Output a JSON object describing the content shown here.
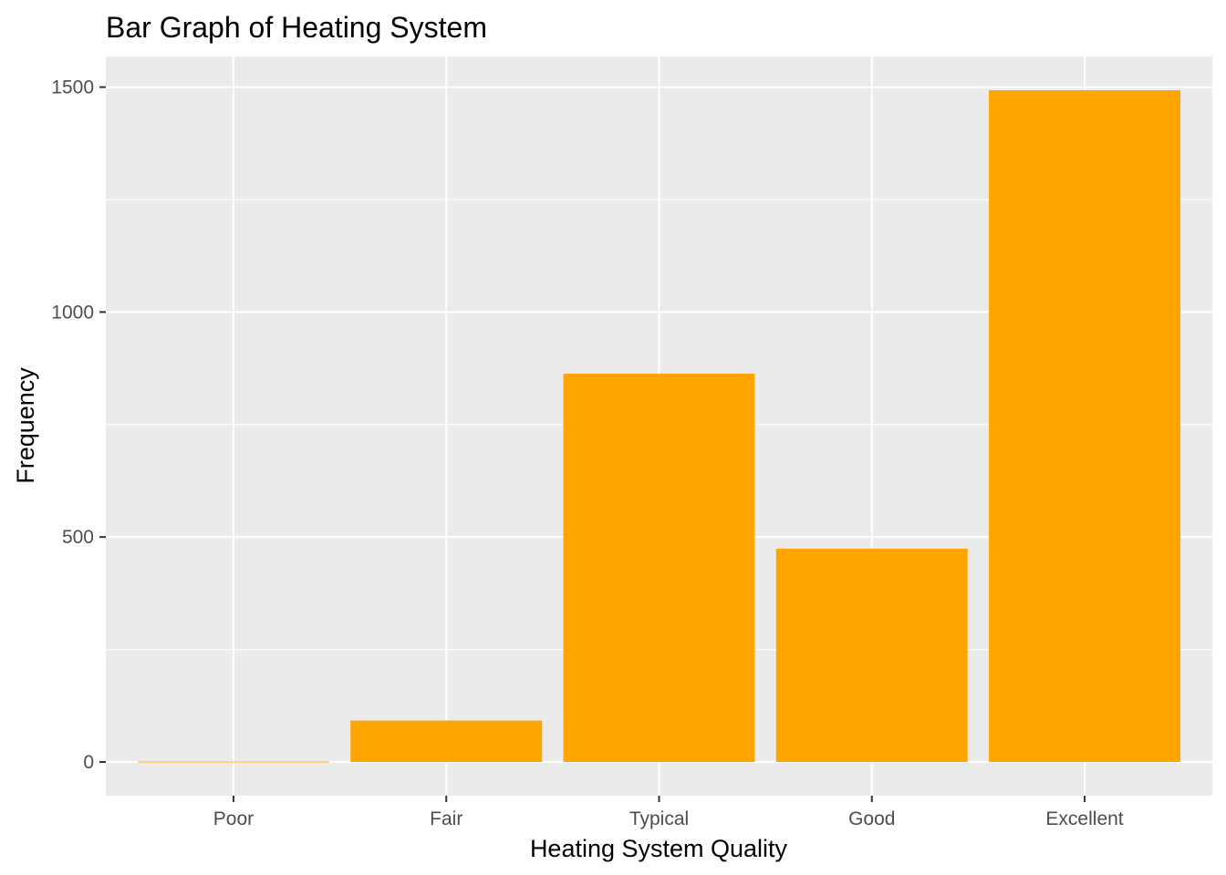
{
  "chart_data": {
    "type": "bar",
    "title": "Bar Graph of Heating System",
    "xlabel": "Heating System Quality",
    "ylabel": "Frequency",
    "categories": [
      "Poor",
      "Fair",
      "Typical",
      "Good",
      "Excellent"
    ],
    "values": [
      1,
      92,
      863,
      474,
      1493
    ],
    "ylim": [
      -75,
      1568
    ],
    "yticks": [
      0,
      500,
      1000,
      1500
    ],
    "yticks_minor": [
      250,
      750,
      1250
    ],
    "grid": true,
    "legend": "none",
    "colors": {
      "bar": "#ffa500",
      "panel": "#ebebeb",
      "grid": "#ffffff",
      "tick_label": "#4d4d4d",
      "tick_mark": "#333333"
    }
  }
}
